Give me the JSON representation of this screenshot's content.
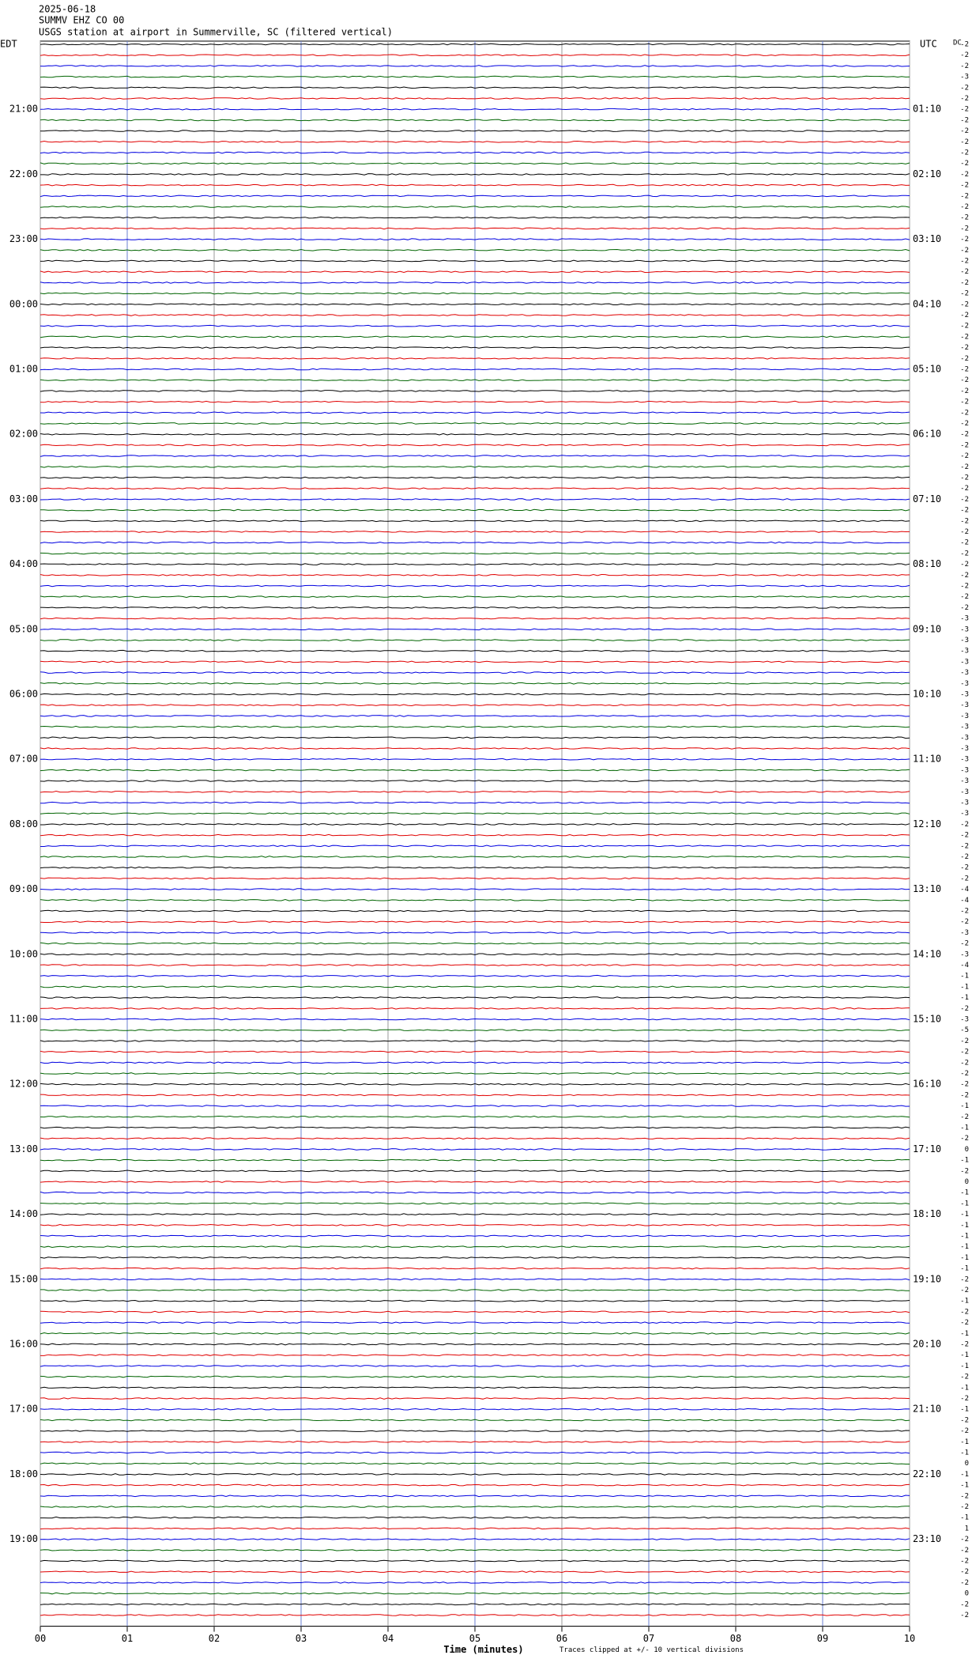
{
  "chart_data": {
    "type": "helicorder",
    "title_lines": [
      "2025-06-18",
      "SUMMV EHZ CO 00",
      "USGS station at airport in Summerville, SC (filtered vertical)"
    ],
    "left_zone": "EDT",
    "right_zone": "UTC",
    "offset_header": "DC",
    "left_labels": [
      "21:00",
      "22:00",
      "23:00",
      "00:00",
      "01:00",
      "02:00",
      "03:00",
      "04:00",
      "05:00",
      "06:00",
      "07:00",
      "08:00",
      "09:00",
      "10:00",
      "11:00",
      "12:00",
      "13:00",
      "14:00",
      "15:00",
      "16:00",
      "17:00",
      "18:00",
      "19:00"
    ],
    "right_labels": [
      "01:10",
      "02:10",
      "03:10",
      "04:10",
      "05:10",
      "06:10",
      "07:10",
      "08:10",
      "09:10",
      "10:10",
      "11:10",
      "12:10",
      "13:10",
      "14:10",
      "15:10",
      "16:10",
      "17:10",
      "18:10",
      "19:10",
      "20:10",
      "21:10",
      "22:10",
      "23:10"
    ],
    "colors": [
      "#000000",
      "#e00000",
      "#0000e0",
      "#006400"
    ],
    "offsets": [
      -2,
      -2,
      -2,
      -3,
      -2,
      -2,
      -2,
      -2,
      -2,
      -2,
      -2,
      -2,
      -2,
      -2,
      -2,
      -2,
      -2,
      -2,
      -2,
      -2,
      -2,
      -2,
      -2,
      -2,
      -2,
      -2,
      -2,
      -2,
      -2,
      -2,
      -2,
      -2,
      -2,
      -2,
      -2,
      -2,
      -2,
      -2,
      -2,
      -2,
      -2,
      -2,
      -2,
      -2,
      -2,
      -2,
      -2,
      -2,
      -2,
      -2,
      -2,
      -2,
      -2,
      -3,
      -3,
      -3,
      -3,
      -3,
      -3,
      -3,
      -3,
      -3,
      -3,
      -3,
      -3,
      -3,
      -3,
      -3,
      -3,
      -3,
      -3,
      -3,
      -2,
      -2,
      -2,
      -2,
      -2,
      -2,
      -4,
      -4,
      -2,
      -2,
      -3,
      -2,
      -3,
      -4,
      -1,
      -1,
      -1,
      -2,
      -3,
      -5,
      -2,
      -2,
      -2,
      -2,
      -2,
      -2,
      -1,
      -2,
      -1,
      -2,
      0,
      -1,
      -2,
      0,
      -1,
      -1,
      -1,
      -1,
      -1,
      -1,
      -1,
      -1,
      -2,
      -2,
      -1,
      -2,
      -2,
      -1,
      -2,
      -1,
      -1,
      -2,
      -1,
      -2,
      -1,
      -2,
      -2,
      -1,
      -1,
      0,
      -1,
      -1,
      -2,
      -2,
      -1,
      1,
      -2,
      -2,
      -2,
      -2,
      -2,
      0,
      -2,
      -2
    ],
    "xlabel": "Time (minutes)",
    "note": "Traces clipped at +/- 10 vertical divisions",
    "xlim": [
      0,
      10
    ],
    "xticks": [
      {
        "value": 0,
        "label": "00"
      },
      {
        "value": 1,
        "label": "01"
      },
      {
        "value": 2,
        "label": "02"
      },
      {
        "value": 3,
        "label": "03"
      },
      {
        "value": 4,
        "label": "04"
      },
      {
        "value": 5,
        "label": "05"
      },
      {
        "value": 6,
        "label": "06"
      },
      {
        "value": 7,
        "label": "07"
      },
      {
        "value": 8,
        "label": "08"
      },
      {
        "value": 9,
        "label": "09"
      },
      {
        "value": 10,
        "label": "10"
      }
    ],
    "grid": true
  }
}
